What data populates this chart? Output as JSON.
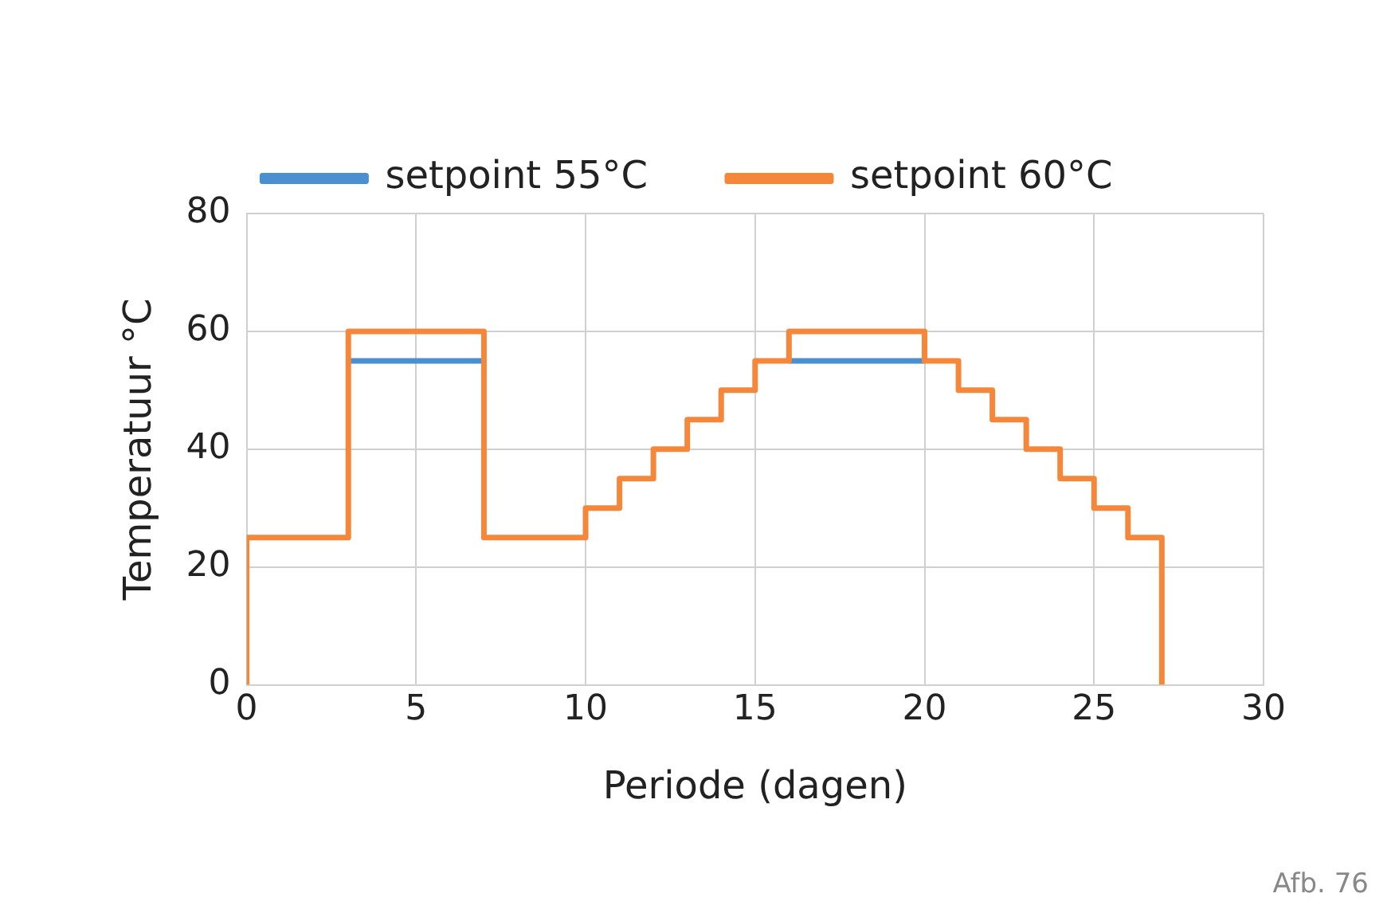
{
  "chart_data": {
    "type": "step",
    "xlabel": "Periode (dagen)",
    "ylabel": "Temperatuur °C",
    "annotations": [
      "Afb. 76"
    ],
    "x": [
      0,
      0,
      3,
      7,
      10,
      11,
      12,
      13,
      14,
      15,
      16,
      20,
      21,
      22,
      23,
      24,
      25,
      26,
      27
    ],
    "series": [
      {
        "name": "setpoint 55°C",
        "color": "#4a90d0",
        "x": [
          3,
          7,
          10,
          16,
          20
        ],
        "values": [
          55,
          55,
          null,
          55,
          55
        ]
      },
      {
        "name": "setpoint 60°C",
        "color": "#f4873a",
        "values": [
          0,
          25,
          60,
          25,
          30,
          35,
          40,
          45,
          50,
          55,
          60,
          55,
          50,
          45,
          40,
          35,
          30,
          25,
          0
        ]
      }
    ],
    "xlim": [
      0,
      30
    ],
    "xticks": [
      0,
      5,
      10,
      15,
      20,
      25,
      30
    ],
    "ylim": [
      0,
      80
    ],
    "yticks": [
      0,
      20,
      40,
      60,
      80
    ],
    "grid": true,
    "legend": "top",
    "marker": "none",
    "line_style": "solid"
  }
}
